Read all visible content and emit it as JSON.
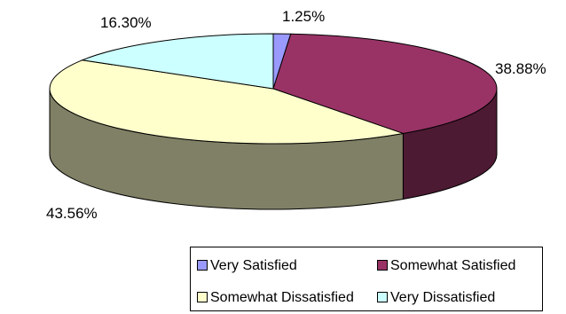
{
  "chart_data": {
    "type": "pie",
    "style": "3d",
    "title": "",
    "categories": [
      "Very Satisfied",
      "Somewhat Satisfied",
      "Somewhat Dissatisfied",
      "Very Dissatisfied"
    ],
    "values": [
      1.25,
      38.88,
      43.56,
      16.3
    ],
    "labels": [
      "1.25%",
      "38.88%",
      "43.56%",
      "16.30%"
    ],
    "colors": [
      "#9999ff",
      "#993366",
      "#ffffcc",
      "#ccffff"
    ],
    "side_colors": [
      "#4c4c80",
      "#4d1a33",
      "#808066",
      "#668080"
    ],
    "legend": {
      "position": "bottom-right",
      "entries": [
        "Very Satisfied",
        "Somewhat Satisfied",
        "Somewhat Dissatisfied",
        "Very Dissatisfied"
      ]
    }
  }
}
